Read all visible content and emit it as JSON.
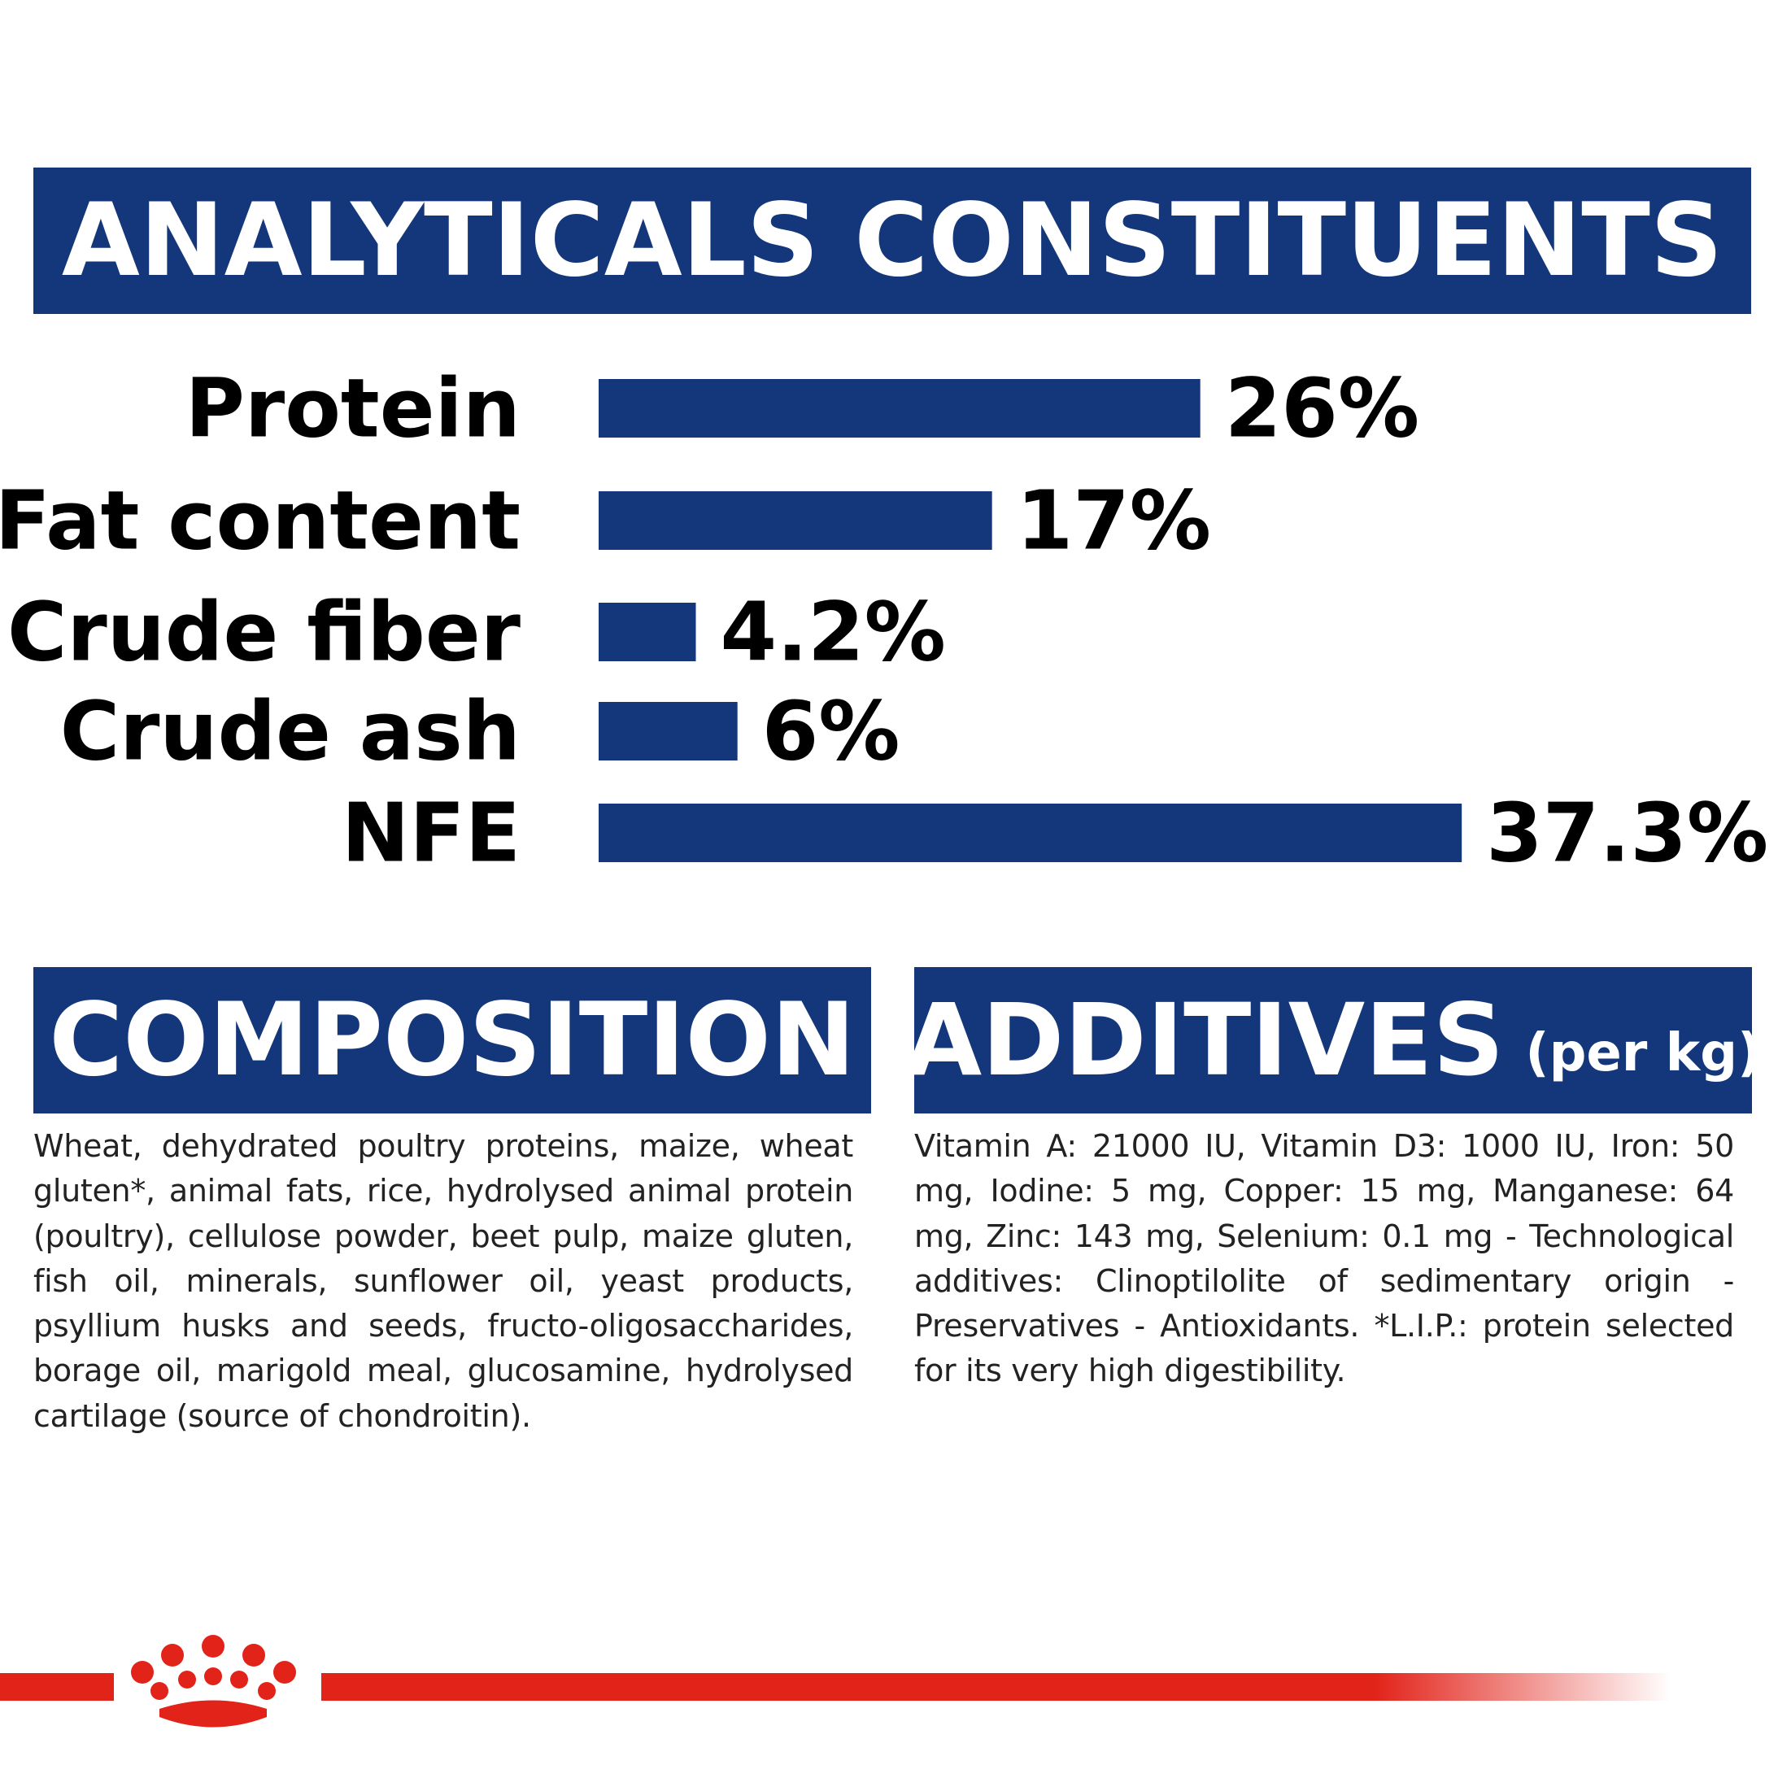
{
  "analytical": {
    "title": "ANALYTICALS CONSTITUENTS"
  },
  "chart_data": {
    "type": "bar",
    "orientation": "horizontal",
    "categories": [
      "Protein",
      "Fat content",
      "Crude fiber",
      "Crude ash",
      "NFE"
    ],
    "values": [
      26,
      17,
      4.2,
      6,
      37.3
    ],
    "value_labels": [
      "26%",
      "17%",
      "4.2%",
      "6%",
      "37.3%"
    ],
    "unit": "%",
    "title": "ANALYTICALS CONSTITUENTS",
    "grid": false,
    "legend": "none",
    "bar_color": "#13377a"
  },
  "composition": {
    "title": "COMPOSITION",
    "text": "Wheat, dehydrated poultry proteins, maize, wheat gluten*, animal fats, rice, hydrolysed animal protein (poultry), cellulose powder, beet pulp, maize gluten, fish oil, minerals, sunflower oil, yeast products, psyllium husks and seeds, fructo-oligosaccharides, borage oil, marigold meal, glucosamine, hydrolysed cartilage (source of chondroitin)."
  },
  "additives": {
    "title": "ADDITIVES",
    "title_suffix": "(per kg)",
    "text": "Vitamin A: 21000 IU, Vitamin D3: 1000 IU, Iron: 50 mg, Iodine: 5 mg, Copper: 15 mg, Manganese: 64 mg, Zinc: 143 mg, Selenium: 0.1 mg - Technological additives: Clinoptilolite of sedimentary origin - Preservatives - Antioxidants. *L.I.P.: protein selected for its very high digestibility."
  },
  "colors": {
    "banner": "#13377a",
    "bar": "#13377a",
    "brand_red": "#e2231a",
    "text": "#222222",
    "label": "#000000"
  },
  "footer": {
    "logo_icon": "royal-canin-crown-icon"
  }
}
